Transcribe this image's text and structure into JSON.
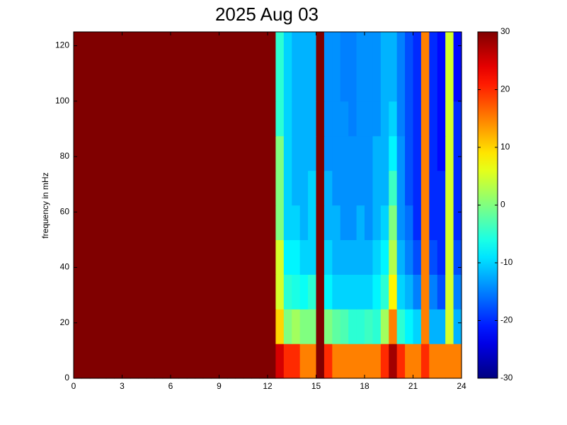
{
  "chart_data": {
    "type": "heatmap",
    "title": "2025 Aug 03",
    "y_label": "frequency in mHz",
    "xlim": [
      0,
      24
    ],
    "xticks": [
      0,
      3,
      6,
      9,
      12,
      15,
      18,
      21,
      24
    ],
    "ylim": [
      0,
      125
    ],
    "yticks": [
      0,
      20,
      40,
      60,
      80,
      100,
      120
    ],
    "colormap": "jet",
    "clim": [
      -30,
      30
    ],
    "cticks": [
      -30,
      -20,
      -10,
      0,
      10,
      20,
      30
    ],
    "z": [
      [
        30,
        30,
        30,
        30,
        30,
        30,
        30,
        30,
        30,
        30,
        30,
        30,
        30,
        30,
        30,
        30,
        30,
        30,
        30,
        30,
        30,
        30,
        30,
        30,
        30,
        25,
        20,
        20,
        15,
        15,
        30,
        20,
        15,
        15,
        15,
        15,
        15,
        15,
        20,
        28,
        20,
        15,
        15,
        20,
        15,
        15,
        15,
        15
      ],
      [
        30,
        30,
        30,
        30,
        30,
        30,
        30,
        30,
        30,
        30,
        30,
        30,
        30,
        30,
        30,
        30,
        30,
        30,
        30,
        30,
        30,
        30,
        30,
        30,
        30,
        10,
        0,
        2,
        0,
        0,
        30,
        0,
        -2,
        -3,
        -5,
        -5,
        -4,
        -5,
        2,
        15,
        -5,
        -8,
        -10,
        15,
        -12,
        -12,
        5,
        -12
      ],
      [
        30,
        30,
        30,
        30,
        30,
        30,
        30,
        30,
        30,
        30,
        30,
        30,
        30,
        30,
        30,
        30,
        30,
        30,
        30,
        30,
        30,
        30,
        30,
        30,
        30,
        5,
        -5,
        -6,
        -7,
        -5,
        30,
        -8,
        -10,
        -10,
        -10,
        -10,
        -10,
        -8,
        -5,
        8,
        -10,
        -12,
        -15,
        15,
        -15,
        -18,
        5,
        -15
      ],
      [
        30,
        30,
        30,
        30,
        30,
        30,
        30,
        30,
        30,
        30,
        30,
        30,
        30,
        30,
        30,
        30,
        30,
        30,
        30,
        30,
        30,
        30,
        30,
        30,
        30,
        5,
        -8,
        -8,
        -10,
        -10,
        30,
        -10,
        -12,
        -12,
        -12,
        -12,
        -12,
        -10,
        -8,
        3,
        -12,
        -15,
        -18,
        15,
        -18,
        -20,
        5,
        -18
      ],
      [
        30,
        30,
        30,
        30,
        30,
        30,
        30,
        30,
        30,
        30,
        30,
        30,
        30,
        30,
        30,
        30,
        30,
        30,
        30,
        30,
        30,
        30,
        30,
        30,
        30,
        0,
        -10,
        -10,
        -12,
        -10,
        30,
        -12,
        -12,
        -14,
        -14,
        -12,
        -14,
        -12,
        -10,
        0,
        -14,
        -16,
        -20,
        15,
        -20,
        -20,
        5,
        -20
      ],
      [
        30,
        30,
        30,
        30,
        30,
        30,
        30,
        30,
        30,
        30,
        30,
        30,
        30,
        30,
        30,
        30,
        30,
        30,
        30,
        30,
        30,
        30,
        30,
        30,
        30,
        0,
        -10,
        -12,
        -12,
        -10,
        30,
        -12,
        -14,
        -14,
        -14,
        -14,
        -14,
        -12,
        -12,
        -4,
        -14,
        -18,
        -20,
        15,
        -20,
        -20,
        5,
        -20
      ],
      [
        30,
        30,
        30,
        30,
        30,
        30,
        30,
        30,
        30,
        30,
        30,
        30,
        30,
        30,
        30,
        30,
        30,
        30,
        30,
        30,
        30,
        30,
        30,
        30,
        30,
        0,
        -10,
        -12,
        -12,
        -12,
        30,
        -14,
        -14,
        -14,
        -14,
        -14,
        -14,
        -12,
        -12,
        -8,
        -14,
        -18,
        -20,
        15,
        -20,
        -22,
        5,
        -20
      ],
      [
        30,
        30,
        30,
        30,
        30,
        30,
        30,
        30,
        30,
        30,
        30,
        30,
        30,
        30,
        30,
        30,
        30,
        30,
        30,
        30,
        30,
        30,
        30,
        30,
        30,
        -5,
        -10,
        -12,
        -12,
        -12,
        30,
        -14,
        -14,
        -14,
        -15,
        -14,
        -14,
        -14,
        -12,
        -10,
        -15,
        -18,
        -20,
        15,
        -20,
        -22,
        5,
        -20
      ],
      [
        30,
        30,
        30,
        30,
        30,
        30,
        30,
        30,
        30,
        30,
        30,
        30,
        30,
        30,
        30,
        30,
        30,
        30,
        30,
        30,
        30,
        30,
        30,
        30,
        30,
        -5,
        -10,
        -12,
        -12,
        -12,
        30,
        -14,
        -14,
        -15,
        -15,
        -14,
        -14,
        -14,
        -12,
        -12,
        -15,
        -18,
        -20,
        15,
        -20,
        -22,
        5,
        -22
      ],
      [
        30,
        30,
        30,
        30,
        30,
        30,
        30,
        30,
        30,
        30,
        30,
        30,
        30,
        30,
        30,
        30,
        30,
        30,
        30,
        30,
        30,
        30,
        30,
        30,
        30,
        -5,
        -10,
        -12,
        -12,
        -12,
        30,
        -14,
        -14,
        -15,
        -15,
        -14,
        -14,
        -14,
        -12,
        -12,
        -15,
        -18,
        -20,
        15,
        -20,
        -22,
        5,
        -22
      ]
    ]
  }
}
